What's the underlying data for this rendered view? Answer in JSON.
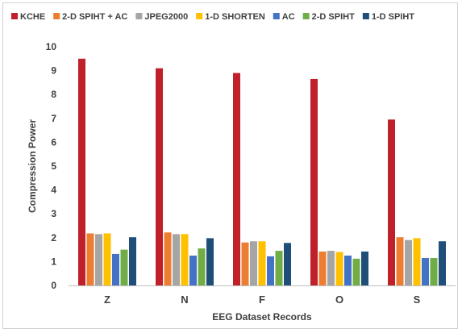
{
  "chart_data": {
    "type": "bar",
    "categories": [
      "Z",
      "N",
      "F",
      "O",
      "S"
    ],
    "series": [
      {
        "name": "KCHE",
        "color": "#c0202a",
        "values": [
          9.5,
          9.1,
          8.9,
          8.65,
          6.95
        ]
      },
      {
        "name": "2-D SPIHT + AC",
        "color": "#ed7d31",
        "values": [
          2.18,
          2.22,
          1.8,
          1.42,
          2.02
        ]
      },
      {
        "name": "JPEG2000",
        "color": "#a5a5a5",
        "values": [
          2.15,
          2.15,
          1.85,
          1.45,
          1.9
        ]
      },
      {
        "name": "1-D SHORTEN",
        "color": "#ffc000",
        "values": [
          2.18,
          2.15,
          1.85,
          1.4,
          1.98
        ]
      },
      {
        "name": "AC",
        "color": "#4472c4",
        "values": [
          1.32,
          1.25,
          1.22,
          1.25,
          1.15
        ]
      },
      {
        "name": "2-D SPIHT",
        "color": "#70ad47",
        "values": [
          1.5,
          1.55,
          1.45,
          1.12,
          1.15
        ]
      },
      {
        "name": "1-D SPIHT",
        "color": "#1f4e79",
        "values": [
          2.02,
          1.98,
          1.78,
          1.42,
          1.85
        ]
      }
    ],
    "xlabel": "EEG Dataset Records",
    "ylabel": "Compression Power",
    "ylim": [
      0,
      10
    ],
    "yticks": [
      "0",
      "1",
      "2",
      "3",
      "4",
      "5",
      "6",
      "7",
      "8",
      "9",
      "10"
    ],
    "grid": false,
    "legend_position": "top"
  }
}
